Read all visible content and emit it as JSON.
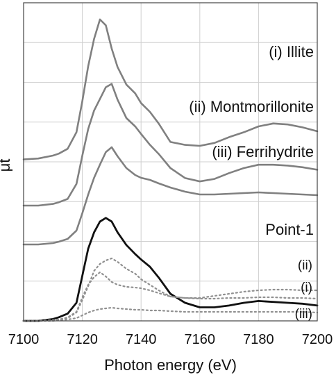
{
  "chart_data": {
    "type": "line",
    "title": "",
    "xlabel": "Photon energy (eV)",
    "ylabel": "μt",
    "xlim": [
      7100,
      7200
    ],
    "x_ticks": [
      7100,
      7120,
      7140,
      7160,
      7180,
      7200
    ],
    "y_tick_labels": "none",
    "y_gridlines": 8,
    "grid": true,
    "legend": "none",
    "x": [
      7100,
      7105,
      7110,
      7112,
      7115,
      7118,
      7120,
      7122,
      7124,
      7126,
      7128,
      7130,
      7132,
      7135,
      7138,
      7140,
      7143,
      7146,
      7150,
      7155,
      7160,
      7165,
      7170,
      7175,
      7180,
      7185,
      7190,
      7195,
      7200
    ],
    "series": [
      {
        "name": "(i) Illite",
        "style": "solid",
        "color": "#808080",
        "values": [
          0.06,
          0.07,
          0.1,
          0.12,
          0.17,
          0.34,
          0.66,
          1.02,
          1.3,
          1.5,
          1.44,
          1.2,
          1.01,
          0.83,
          0.74,
          0.64,
          0.55,
          0.43,
          0.24,
          0.21,
          0.2,
          0.23,
          0.29,
          0.34,
          0.4,
          0.43,
          0.42,
          0.39,
          0.35
        ]
      },
      {
        "name": "(ii) Montmorillonite",
        "style": "solid",
        "color": "#808080",
        "values": [
          0.0,
          0.0,
          0.02,
          0.04,
          0.08,
          0.26,
          0.6,
          0.92,
          1.14,
          1.28,
          1.42,
          1.46,
          1.27,
          1.05,
          0.95,
          0.86,
          0.73,
          0.62,
          0.45,
          0.33,
          0.29,
          0.32,
          0.39,
          0.45,
          0.49,
          0.49,
          0.48,
          0.46,
          0.43
        ]
      },
      {
        "name": "(iii) Ferrihydrite",
        "style": "solid",
        "color": "#808080",
        "values": [
          0.0,
          0.0,
          0.02,
          0.04,
          0.08,
          0.2,
          0.45,
          0.72,
          0.96,
          1.15,
          1.33,
          1.4,
          1.27,
          1.1,
          1.0,
          0.96,
          0.93,
          0.88,
          0.82,
          0.76,
          0.72,
          0.72,
          0.73,
          0.74,
          0.75,
          0.74,
          0.73,
          0.72,
          0.71
        ]
      },
      {
        "name": "Point-1",
        "style": "solid",
        "color": "#111111",
        "values": [
          0.0,
          0.0,
          0.02,
          0.04,
          0.08,
          0.2,
          0.5,
          0.8,
          0.98,
          1.1,
          1.14,
          1.1,
          0.98,
          0.84,
          0.74,
          0.68,
          0.6,
          0.48,
          0.3,
          0.2,
          0.15,
          0.15,
          0.17,
          0.2,
          0.22,
          0.21,
          0.2,
          0.19,
          0.17
        ]
      },
      {
        "name": "(ii)",
        "style": "dotted",
        "color": "#909090",
        "values": [
          0.0,
          0.0,
          0.01,
          0.02,
          0.04,
          0.12,
          0.3,
          0.5,
          0.72,
          0.82,
          0.87,
          0.9,
          0.85,
          0.75,
          0.68,
          0.6,
          0.52,
          0.44,
          0.35,
          0.33,
          0.33,
          0.36,
          0.39,
          0.42,
          0.44,
          0.45,
          0.45,
          0.44,
          0.44
        ]
      },
      {
        "name": "(i)",
        "style": "dotted",
        "color": "#909090",
        "values": [
          0.0,
          0.0,
          0.01,
          0.02,
          0.05,
          0.13,
          0.34,
          0.52,
          0.63,
          0.7,
          0.64,
          0.56,
          0.52,
          0.49,
          0.48,
          0.47,
          0.44,
          0.4,
          0.35,
          0.33,
          0.32,
          0.32,
          0.33,
          0.33,
          0.34,
          0.34,
          0.33,
          0.33,
          0.32
        ]
      },
      {
        "name": "(iii)",
        "style": "dotted",
        "color": "#909090",
        "values": [
          0.0,
          0.0,
          0.0,
          0.01,
          0.02,
          0.04,
          0.08,
          0.12,
          0.15,
          0.17,
          0.18,
          0.19,
          0.18,
          0.17,
          0.16,
          0.16,
          0.15,
          0.15,
          0.14,
          0.13,
          0.13,
          0.13,
          0.13,
          0.13,
          0.13,
          0.13,
          0.13,
          0.13,
          0.12
        ]
      }
    ]
  }
}
